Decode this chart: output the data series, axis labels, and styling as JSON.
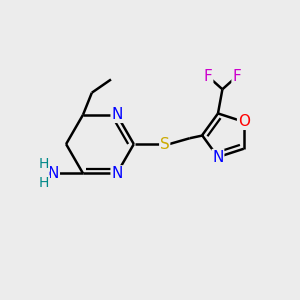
{
  "bg_color": "#ececec",
  "atom_colors": {
    "N": "#0000ff",
    "O": "#ff0000",
    "S": "#ccaa00",
    "F": "#cc00cc",
    "H": "#008888"
  },
  "bond_color": "#000000",
  "bond_width": 1.8,
  "font_size": 11
}
